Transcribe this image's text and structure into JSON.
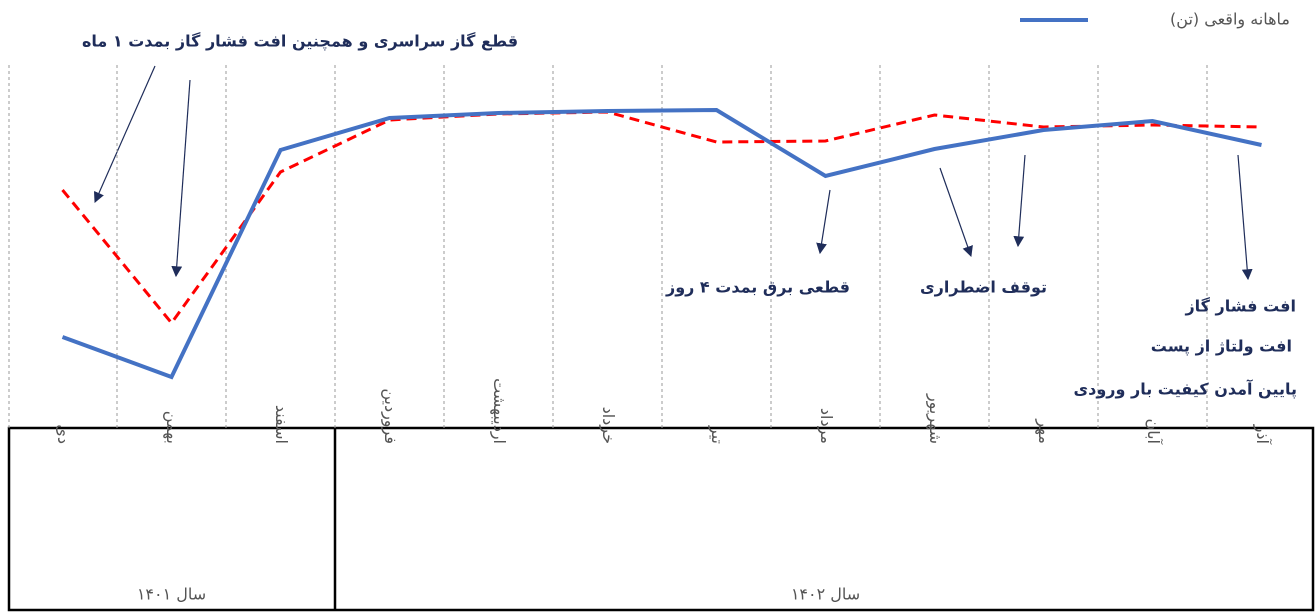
{
  "chart_data": {
    "type": "line",
    "categories": [
      "دی",
      "بهمن",
      "اسفند",
      "فروردین",
      "اردیبهشت",
      "خرداد",
      "تیر",
      "مرداد",
      "شهریور",
      "مهر",
      "آبان",
      "آذر"
    ],
    "groups": [
      {
        "label": "سال ۱۴۰۱",
        "span": 3
      },
      {
        "label": "سال ۱۴۰۲",
        "span": 9
      }
    ],
    "series": [
      {
        "name": "ماهانه واقعی (تن)",
        "color": "#4472c4",
        "values": [
          63,
          23,
          250,
          282,
          287,
          289,
          290,
          224,
          251,
          270,
          279,
          255
        ]
      },
      {
        "color": "#ff0000",
        "dashed": true,
        "values": [
          210,
          77,
          228,
          280,
          286,
          288,
          258,
          259,
          285,
          273,
          275,
          273
        ]
      }
    ],
    "annotations": [
      "قطع گاز سراسری و همچنین افت فشار گاز بمدت ۱ ماه",
      "قطعی برق بمدت ۴ روز",
      "توقف اضطراری",
      "افت فشار گاز",
      "افت ولتاژ از پست",
      "پایین آمدن کیفیت بار ورودی"
    ],
    "grid": true
  }
}
